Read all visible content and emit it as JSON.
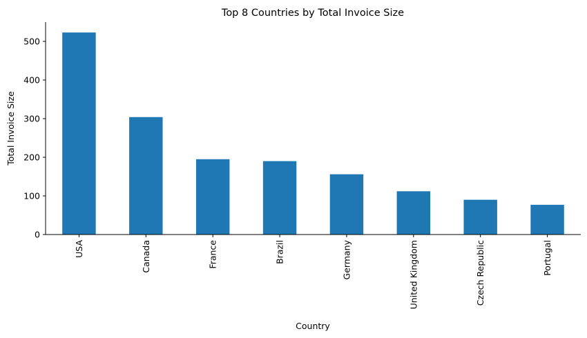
{
  "chart_data": {
    "type": "bar",
    "title": "Top 8 Countries by Total Invoice Size",
    "xlabel": "Country",
    "ylabel": "Total Invoice Size",
    "categories": [
      "USA",
      "Canada",
      "France",
      "Brazil",
      "Germany",
      "United Kingdom",
      "Czech Republic",
      "Portugal"
    ],
    "values": [
      523,
      304,
      195,
      190,
      156,
      112,
      90,
      77
    ],
    "ylim": [
      0,
      550
    ],
    "yticks": [
      0,
      100,
      200,
      300,
      400,
      500
    ],
    "grid": false,
    "legend": "none",
    "bar_color": "#1f77b4"
  }
}
